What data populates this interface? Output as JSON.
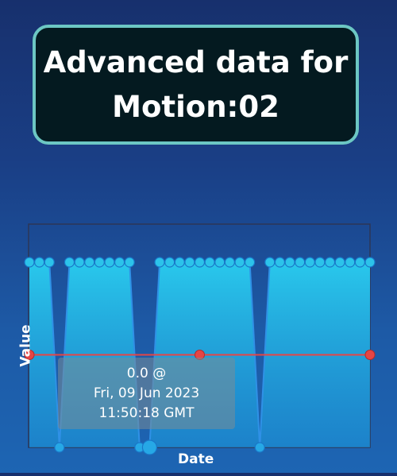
{
  "title": {
    "line1": "Advanced data for",
    "line2": "Motion:02"
  },
  "tooltip": {
    "line1": "0.0 @",
    "line2": "Fri, 09 Jun 2023",
    "line3": "11:50:18 GMT"
  },
  "colors": {
    "area_fill": "#29c8ec",
    "line": "#2f91e6",
    "reference": "#e64545",
    "frame": "#2c3656"
  },
  "chart_data": {
    "type": "area",
    "xlabel": "Date",
    "ylabel": "Value",
    "ylim": [
      0,
      1
    ],
    "grid": false,
    "values": [
      1,
      1,
      1,
      0,
      1,
      1,
      1,
      1,
      1,
      1,
      1,
      0,
      0,
      1,
      1,
      1,
      1,
      1,
      1,
      1,
      1,
      1,
      1,
      0,
      1,
      1,
      1,
      1,
      1,
      1,
      1,
      1,
      1,
      1,
      1
    ],
    "x_index_positions": [
      0,
      1,
      2,
      3,
      4,
      5,
      6,
      7,
      8,
      9,
      10,
      11,
      12,
      13,
      14,
      15,
      16,
      17,
      18,
      19,
      20,
      21,
      22,
      23,
      24,
      25,
      26,
      27,
      28,
      29,
      30,
      31,
      32,
      33,
      34
    ],
    "reference_line_value": 0.5,
    "reference_points_index": [
      0,
      17,
      34
    ]
  }
}
